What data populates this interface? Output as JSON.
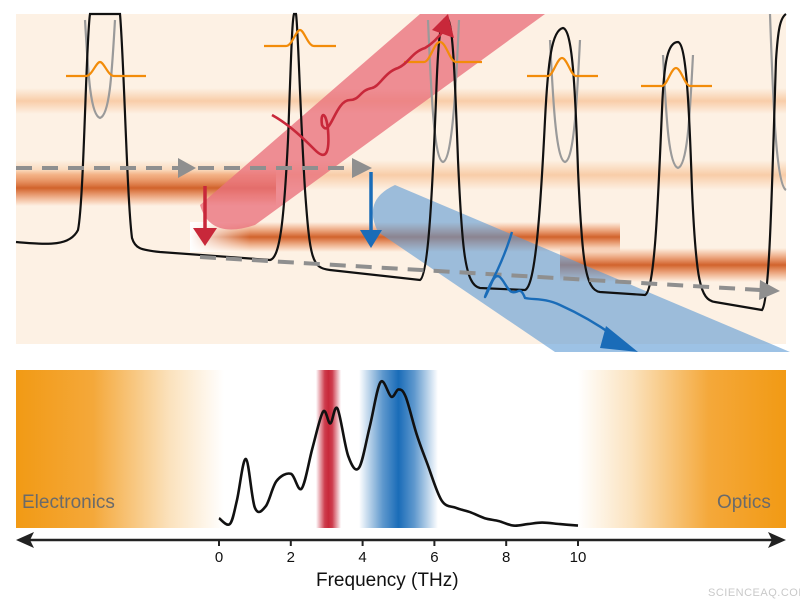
{
  "labels": {
    "left": "Electronics",
    "right": "Optics",
    "axis_title": "Frequency (THz)",
    "watermark": "SCIENCEAQ.COM"
  },
  "colors": {
    "optics_band": "#f29a14",
    "thz_red": "#c8283a",
    "thz_blue": "#1a6cb8",
    "potential": "#111111",
    "wavepacket": "#f28c0a",
    "arrow_gray": "#8f8f8f",
    "band_fill": "#e8590e"
  },
  "chart_data": {
    "type": "line",
    "title": "",
    "xlabel": "Frequency (THz)",
    "ylabel": "",
    "xlim": [
      0,
      10
    ],
    "xticks": [
      "0",
      "2",
      "4",
      "6",
      "8",
      "10"
    ],
    "highlight_bands": [
      {
        "color": "red",
        "range": [
          2.7,
          3.4
        ]
      },
      {
        "color": "blue",
        "range": [
          3.9,
          6.1
        ]
      }
    ],
    "series": [
      {
        "x": [
          0,
          0.3,
          0.5,
          0.75,
          1.0,
          1.3,
          1.6,
          2.0,
          2.3,
          2.6,
          2.9,
          3.1,
          3.3,
          3.6,
          3.9,
          4.2,
          4.5,
          4.8,
          5.0,
          5.2,
          5.5,
          5.8,
          6.2,
          6.6,
          7.0,
          7.4,
          7.8,
          8.2,
          8.6,
          9.0,
          9.5,
          10
        ],
        "y": [
          0.08,
          0.04,
          0.2,
          0.48,
          0.15,
          0.16,
          0.33,
          0.38,
          0.28,
          0.55,
          0.8,
          0.72,
          0.82,
          0.5,
          0.42,
          0.7,
          1.0,
          0.9,
          0.95,
          0.9,
          0.65,
          0.45,
          0.2,
          0.15,
          0.12,
          0.08,
          0.06,
          0.03,
          0.04,
          0.05,
          0.04,
          0.03
        ]
      }
    ]
  }
}
